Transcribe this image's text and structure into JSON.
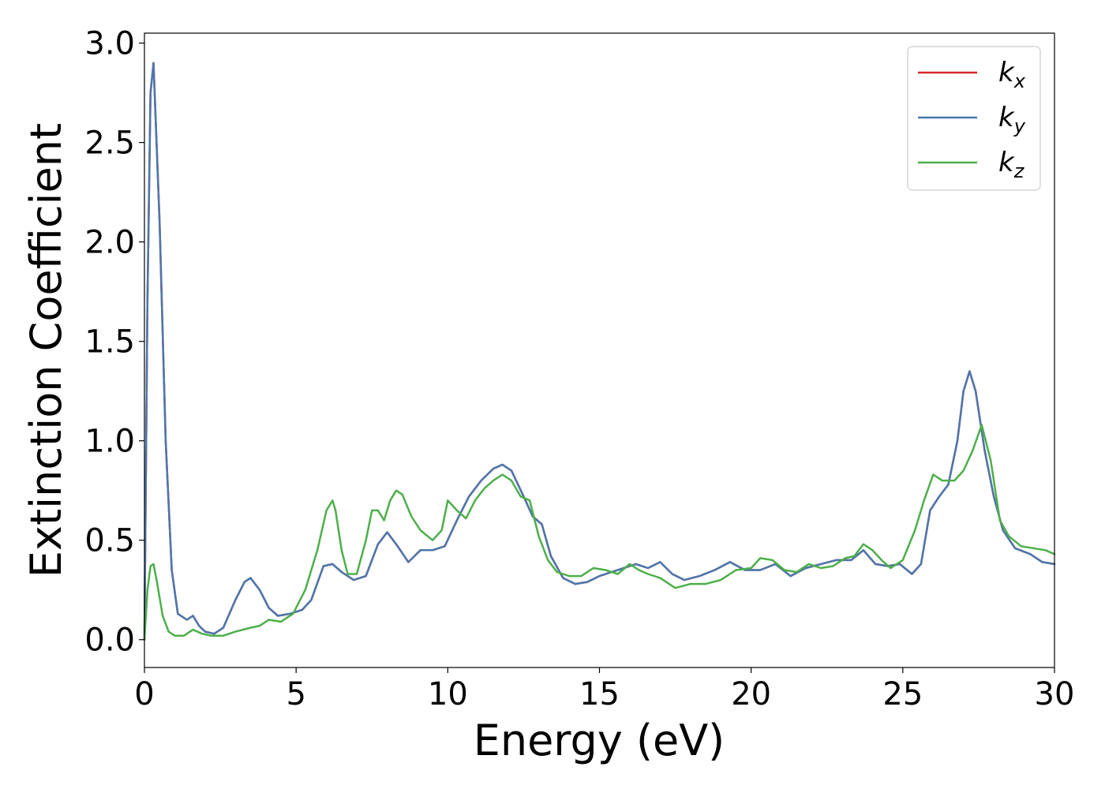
{
  "chart_data": {
    "type": "line",
    "title": "",
    "xlabel": "Energy (eV)",
    "ylabel": "Extinction Coefficient",
    "xlim": [
      0,
      30
    ],
    "ylim": [
      -0.14,
      3.05
    ],
    "xticks": [
      0,
      5,
      10,
      15,
      20,
      25,
      30
    ],
    "xtick_labels": [
      "0",
      "5",
      "10",
      "15",
      "20",
      "25",
      "30"
    ],
    "yticks": [
      0.0,
      0.5,
      1.0,
      1.5,
      2.0,
      2.5,
      3.0
    ],
    "ytick_labels": [
      "0.0",
      "0.5",
      "1.0",
      "1.5",
      "2.0",
      "2.5",
      "3.0"
    ],
    "grid": false,
    "legend": {
      "position": "top-right"
    },
    "series": [
      {
        "name": "k",
        "sub": "x",
        "color": "#d62728",
        "x": [
          0,
          0.1,
          0.2,
          0.3,
          0.5,
          0.7,
          0.9,
          1.1,
          1.4,
          1.6,
          1.8,
          2.0,
          2.3,
          2.6,
          3.0,
          3.3,
          3.5,
          3.8,
          4.1,
          4.4,
          4.8,
          5.2,
          5.5,
          5.9,
          6.2,
          6.5,
          6.9,
          7.3,
          7.7,
          8.0,
          8.3,
          8.7,
          9.1,
          9.5,
          9.9,
          10.3,
          10.7,
          11.1,
          11.5,
          11.8,
          12.1,
          12.5,
          12.8,
          13.1,
          13.4,
          13.8,
          14.2,
          14.6,
          15.0,
          15.4,
          15.8,
          16.2,
          16.6,
          17.0,
          17.4,
          17.8,
          18.3,
          18.8,
          19.3,
          19.8,
          20.3,
          20.8,
          21.3,
          21.8,
          22.3,
          22.8,
          23.3,
          23.7,
          24.1,
          24.5,
          24.9,
          25.3,
          25.6,
          25.9,
          26.2,
          26.5,
          26.8,
          27.0,
          27.2,
          27.4,
          27.7,
          28.0,
          28.3,
          28.7,
          29.2,
          29.6,
          30.0
        ],
        "y": [
          0.0,
          1.7,
          2.75,
          2.9,
          2.1,
          1.0,
          0.35,
          0.13,
          0.1,
          0.12,
          0.07,
          0.04,
          0.03,
          0.06,
          0.2,
          0.29,
          0.31,
          0.25,
          0.16,
          0.12,
          0.13,
          0.15,
          0.2,
          0.37,
          0.38,
          0.34,
          0.3,
          0.32,
          0.48,
          0.54,
          0.48,
          0.39,
          0.45,
          0.45,
          0.47,
          0.6,
          0.72,
          0.8,
          0.86,
          0.88,
          0.85,
          0.72,
          0.62,
          0.58,
          0.42,
          0.31,
          0.28,
          0.29,
          0.32,
          0.34,
          0.36,
          0.38,
          0.36,
          0.39,
          0.33,
          0.3,
          0.32,
          0.35,
          0.39,
          0.35,
          0.35,
          0.38,
          0.32,
          0.36,
          0.38,
          0.4,
          0.4,
          0.45,
          0.38,
          0.37,
          0.38,
          0.33,
          0.38,
          0.65,
          0.72,
          0.78,
          1.0,
          1.25,
          1.35,
          1.25,
          0.95,
          0.72,
          0.55,
          0.46,
          0.43,
          0.39,
          0.38
        ]
      },
      {
        "name": "k",
        "sub": "y",
        "color": "#4a78ad",
        "x": [
          0,
          0.1,
          0.2,
          0.3,
          0.5,
          0.7,
          0.9,
          1.1,
          1.4,
          1.6,
          1.8,
          2.0,
          2.3,
          2.6,
          3.0,
          3.3,
          3.5,
          3.8,
          4.1,
          4.4,
          4.8,
          5.2,
          5.5,
          5.9,
          6.2,
          6.5,
          6.9,
          7.3,
          7.7,
          8.0,
          8.3,
          8.7,
          9.1,
          9.5,
          9.9,
          10.3,
          10.7,
          11.1,
          11.5,
          11.8,
          12.1,
          12.5,
          12.8,
          13.1,
          13.4,
          13.8,
          14.2,
          14.6,
          15.0,
          15.4,
          15.8,
          16.2,
          16.6,
          17.0,
          17.4,
          17.8,
          18.3,
          18.8,
          19.3,
          19.8,
          20.3,
          20.8,
          21.3,
          21.8,
          22.3,
          22.8,
          23.3,
          23.7,
          24.1,
          24.5,
          24.9,
          25.3,
          25.6,
          25.9,
          26.2,
          26.5,
          26.8,
          27.0,
          27.2,
          27.4,
          27.7,
          28.0,
          28.3,
          28.7,
          29.2,
          29.6,
          30.0
        ],
        "y": [
          0.0,
          1.7,
          2.75,
          2.9,
          2.1,
          1.0,
          0.35,
          0.13,
          0.1,
          0.12,
          0.07,
          0.04,
          0.03,
          0.06,
          0.2,
          0.29,
          0.31,
          0.25,
          0.16,
          0.12,
          0.13,
          0.15,
          0.2,
          0.37,
          0.38,
          0.34,
          0.3,
          0.32,
          0.48,
          0.54,
          0.48,
          0.39,
          0.45,
          0.45,
          0.47,
          0.6,
          0.72,
          0.8,
          0.86,
          0.88,
          0.85,
          0.72,
          0.62,
          0.58,
          0.42,
          0.31,
          0.28,
          0.29,
          0.32,
          0.34,
          0.36,
          0.38,
          0.36,
          0.39,
          0.33,
          0.3,
          0.32,
          0.35,
          0.39,
          0.35,
          0.35,
          0.38,
          0.32,
          0.36,
          0.38,
          0.4,
          0.4,
          0.45,
          0.38,
          0.37,
          0.38,
          0.33,
          0.38,
          0.65,
          0.72,
          0.78,
          1.0,
          1.25,
          1.35,
          1.25,
          0.95,
          0.72,
          0.55,
          0.46,
          0.43,
          0.39,
          0.38
        ]
      },
      {
        "name": "k",
        "sub": "z",
        "color": "#4daf4a",
        "x": [
          0,
          0.1,
          0.2,
          0.3,
          0.4,
          0.6,
          0.8,
          1.0,
          1.3,
          1.6,
          1.9,
          2.2,
          2.6,
          3.0,
          3.5,
          3.8,
          4.1,
          4.5,
          4.9,
          5.3,
          5.7,
          6.0,
          6.2,
          6.3,
          6.5,
          6.7,
          7.0,
          7.3,
          7.5,
          7.7,
          7.9,
          8.1,
          8.3,
          8.5,
          8.8,
          9.1,
          9.5,
          9.8,
          10.0,
          10.3,
          10.6,
          10.9,
          11.2,
          11.5,
          11.8,
          12.1,
          12.4,
          12.7,
          13.0,
          13.3,
          13.6,
          14.0,
          14.4,
          14.8,
          15.2,
          15.6,
          16.0,
          16.3,
          16.6,
          17.0,
          17.5,
          18.0,
          18.5,
          19.0,
          19.5,
          20.0,
          20.3,
          20.7,
          21.1,
          21.5,
          21.9,
          22.3,
          22.7,
          23.1,
          23.4,
          23.7,
          24.0,
          24.3,
          24.6,
          25.0,
          25.4,
          25.7,
          26.0,
          26.3,
          26.7,
          27.0,
          27.3,
          27.6,
          27.9,
          28.2,
          28.5,
          28.9,
          29.3,
          29.7,
          30.0
        ],
        "y": [
          0.0,
          0.25,
          0.37,
          0.38,
          0.3,
          0.12,
          0.04,
          0.02,
          0.02,
          0.05,
          0.03,
          0.02,
          0.02,
          0.04,
          0.06,
          0.07,
          0.1,
          0.09,
          0.13,
          0.25,
          0.45,
          0.65,
          0.7,
          0.65,
          0.45,
          0.33,
          0.33,
          0.5,
          0.65,
          0.65,
          0.6,
          0.7,
          0.75,
          0.73,
          0.62,
          0.55,
          0.5,
          0.55,
          0.7,
          0.65,
          0.61,
          0.7,
          0.76,
          0.8,
          0.83,
          0.8,
          0.72,
          0.7,
          0.52,
          0.4,
          0.34,
          0.32,
          0.32,
          0.36,
          0.35,
          0.33,
          0.38,
          0.35,
          0.33,
          0.31,
          0.26,
          0.28,
          0.28,
          0.3,
          0.35,
          0.36,
          0.41,
          0.4,
          0.35,
          0.34,
          0.38,
          0.36,
          0.37,
          0.41,
          0.42,
          0.48,
          0.45,
          0.4,
          0.36,
          0.4,
          0.55,
          0.7,
          0.83,
          0.8,
          0.8,
          0.85,
          0.95,
          1.08,
          0.9,
          0.6,
          0.52,
          0.47,
          0.46,
          0.45,
          0.43
        ]
      }
    ]
  }
}
